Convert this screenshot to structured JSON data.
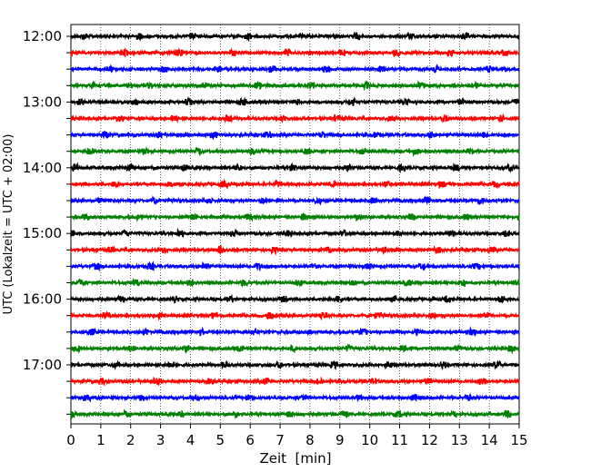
{
  "chart_data": {
    "type": "line",
    "title": "",
    "xlabel": "Zeit  [min]",
    "ylabel": "UTC (Lokalzeit = UTC + 02:00)",
    "xlim": [
      0,
      15
    ],
    "x_ticks": [
      "0",
      "1",
      "2",
      "3",
      "4",
      "5",
      "6",
      "7",
      "8",
      "9",
      "10",
      "11",
      "12",
      "13",
      "14",
      "15"
    ],
    "y_tick_labels": [
      "12:00",
      "13:00",
      "14:00",
      "15:00",
      "16:00",
      "17:00"
    ],
    "grid": "vertical dotted",
    "legend": "none",
    "trace_interval_min": 15,
    "trace_colors": [
      "#000000",
      "#ff0000",
      "#0000ff",
      "#008000"
    ],
    "traces": [
      {
        "start": "12:00",
        "color": "#000000"
      },
      {
        "start": "12:15",
        "color": "#ff0000"
      },
      {
        "start": "12:30",
        "color": "#0000ff"
      },
      {
        "start": "12:45",
        "color": "#008000"
      },
      {
        "start": "13:00",
        "color": "#000000"
      },
      {
        "start": "13:15",
        "color": "#ff0000"
      },
      {
        "start": "13:30",
        "color": "#0000ff"
      },
      {
        "start": "13:45",
        "color": "#008000"
      },
      {
        "start": "14:00",
        "color": "#000000"
      },
      {
        "start": "14:15",
        "color": "#ff0000"
      },
      {
        "start": "14:30",
        "color": "#0000ff"
      },
      {
        "start": "14:45",
        "color": "#008000"
      },
      {
        "start": "15:00",
        "color": "#000000"
      },
      {
        "start": "15:15",
        "color": "#ff0000"
      },
      {
        "start": "15:30",
        "color": "#0000ff"
      },
      {
        "start": "15:45",
        "color": "#008000"
      },
      {
        "start": "16:00",
        "color": "#000000"
      },
      {
        "start": "16:15",
        "color": "#ff0000"
      },
      {
        "start": "16:30",
        "color": "#0000ff"
      },
      {
        "start": "16:45",
        "color": "#008000"
      },
      {
        "start": "17:00",
        "color": "#000000"
      },
      {
        "start": "17:15",
        "color": "#ff0000"
      },
      {
        "start": "17:30",
        "color": "#0000ff"
      },
      {
        "start": "17:45",
        "color": "#008000"
      }
    ]
  }
}
